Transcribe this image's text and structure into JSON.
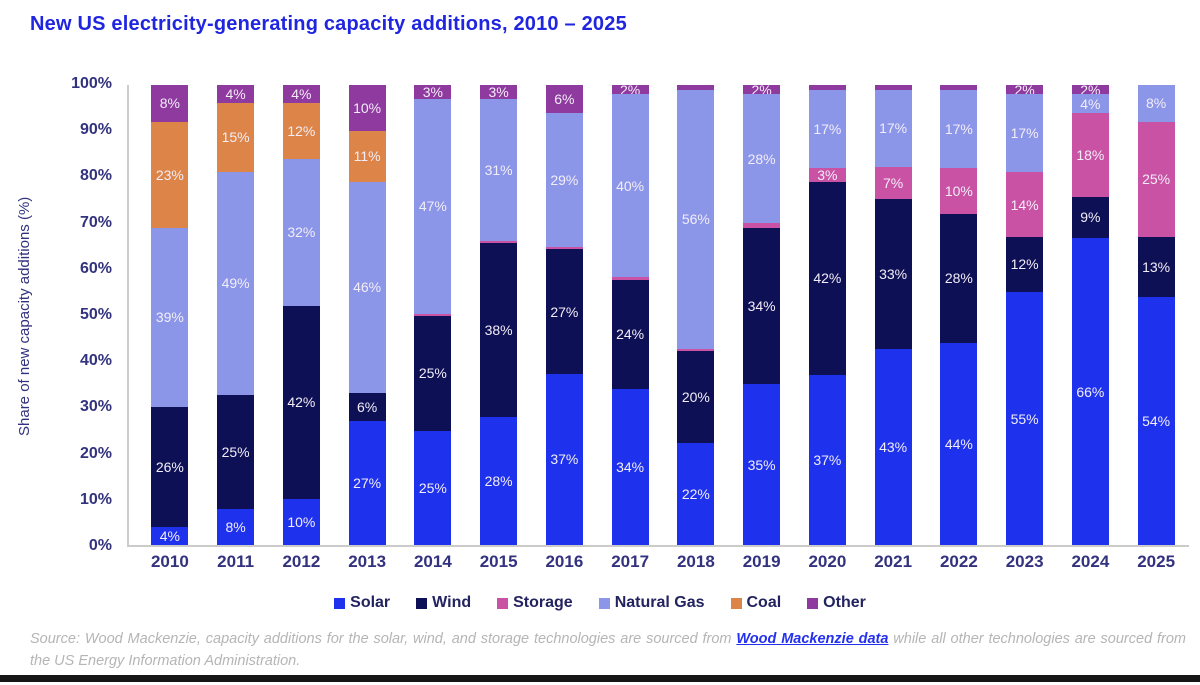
{
  "title": "New US electricity-generating capacity additions, 2010 – 2025",
  "chart_data": {
    "type": "bar",
    "stacked": true,
    "title": "New US electricity-generating capacity additions, 2010 – 2025",
    "ylabel": "Share of new capacity additions (%)",
    "ylim": [
      0,
      100
    ],
    "ytick_step": 10,
    "ytick_suffix": "%",
    "grid": false,
    "legend_position": "bottom",
    "label_suffix": "%",
    "min_label_value": 2,
    "categories": [
      "2010",
      "2011",
      "2012",
      "2013",
      "2014",
      "2015",
      "2016",
      "2017",
      "2018",
      "2019",
      "2020",
      "2021",
      "2022",
      "2023",
      "2024",
      "2025"
    ],
    "series": [
      {
        "name": "Solar",
        "color": "#1e32ee",
        "values": [
          4,
          8,
          10,
          27,
          25,
          28,
          37,
          34,
          22,
          35,
          37,
          43,
          44,
          55,
          66,
          54
        ]
      },
      {
        "name": "Wind",
        "color": "#0d1054",
        "values": [
          26,
          25,
          42,
          6,
          25,
          38,
          27,
          24,
          20,
          34,
          42,
          33,
          28,
          12,
          9,
          13
        ]
      },
      {
        "name": "Storage",
        "color": "#c952a5",
        "values": [
          0,
          0,
          0,
          0,
          0.5,
          0.5,
          0.5,
          0.5,
          0.5,
          1,
          3,
          7,
          10,
          14,
          18,
          25
        ]
      },
      {
        "name": "Natural Gas",
        "color": "#8b96e8",
        "values": [
          39,
          49,
          32,
          46,
          47,
          31,
          29,
          40,
          56,
          28,
          17,
          17,
          17,
          17,
          4,
          8
        ]
      },
      {
        "name": "Coal",
        "color": "#dd8548",
        "values": [
          23,
          15,
          12,
          11,
          0,
          0,
          0,
          0,
          0,
          0,
          0,
          0,
          0,
          0,
          0,
          0
        ]
      },
      {
        "name": "Other",
        "color": "#8e3a9e",
        "values": [
          8,
          4,
          4,
          10,
          3,
          3,
          6,
          2,
          1,
          2,
          1,
          1,
          1,
          2,
          2,
          0
        ]
      }
    ]
  },
  "source": {
    "prefix": "Source: Wood Mackenzie, capacity additions for the solar, wind, and storage technologies are sourced from ",
    "link_text": "Wood Mackenzie data",
    "suffix": " while all other technologies are sourced from the US Energy Information Administration."
  },
  "colors": {
    "title": "#2025e0",
    "axis_text": "#32327e",
    "legend_text": "#23235f",
    "source_text": "#b5b5b5",
    "link": "#2330ee"
  }
}
